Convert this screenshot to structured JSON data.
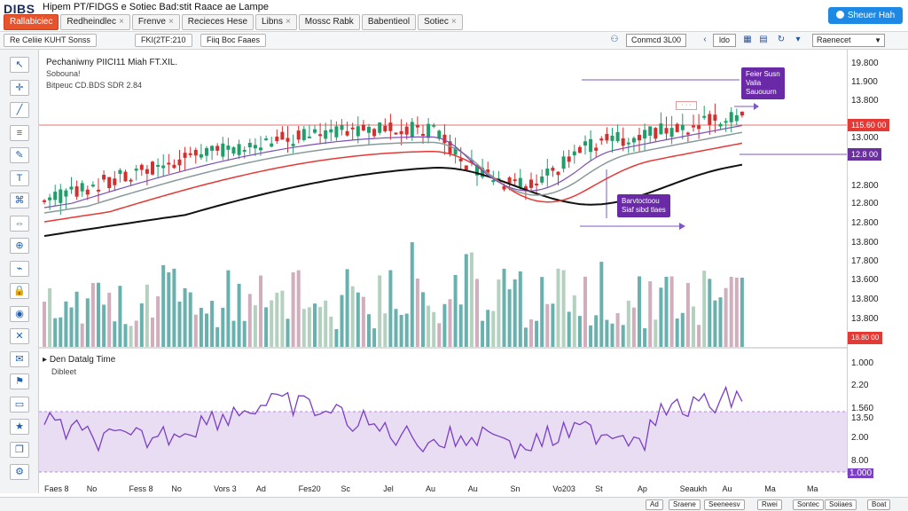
{
  "app": {
    "logo": "DIBS",
    "title": "Hipem PT/FIDGS e Sotiec Bad:stit Raace ae Lampe",
    "share_label": "Sheuer Hah"
  },
  "menu_tabs": [
    {
      "label": "Rallabiciec",
      "active": true
    },
    {
      "label": "Redheindlec",
      "active": false
    },
    {
      "label": "Frenve",
      "active": false
    },
    {
      "label": "Recieces Hese",
      "active": false
    },
    {
      "label": "Libns",
      "active": false
    },
    {
      "label": "Mossc Rabk",
      "active": false
    },
    {
      "label": "Babentieol",
      "active": false
    },
    {
      "label": "Sotiec",
      "active": false
    }
  ],
  "toolbar": {
    "tabs": [
      "Re Celiie KUHT Sonss",
      "FKI(2TF:210",
      "Fiiq Boc Faaes"
    ],
    "search_value": "Conmcd 3L00",
    "range_label": "ldo",
    "select_value": "Raenecet"
  },
  "legend": {
    "title": "Pechaniwny PIICI11 Miah FT.XIL.",
    "line1": "Sobouna!",
    "line2": "Bitpeuc CD.BDS SDR 2.84"
  },
  "oscillator": {
    "title": "Den Datalg Time",
    "subtitle": "Dibleet"
  },
  "price_ticks": [
    "19.800",
    "11.900",
    "13.800",
    "13.000",
    "12.800",
    "12.800",
    "12.800",
    "13.800",
    "17.800",
    "13.600",
    "13.800",
    "13.800"
  ],
  "price_tags": [
    {
      "label": "115.60 00",
      "color": "#e53935"
    },
    {
      "label": "12.8 00",
      "color": "#6b2fa0"
    },
    {
      "label": "18.80 00",
      "color": "#e53935"
    }
  ],
  "osc_ticks": [
    "1.000",
    "2.20",
    "1.560",
    "13.50",
    "2.00",
    "8.00",
    "1.000"
  ],
  "time_ticks": [
    "Faes 8",
    "No",
    "Fess 8",
    "No",
    "Vors 3",
    "Ad",
    "Fes20",
    "Sc",
    "Jel",
    "Au",
    "Au",
    "Sn",
    "Vo203",
    "St",
    "Ap",
    "Seaukh",
    "Au",
    "Ma",
    "Ma"
  ],
  "callouts": [
    {
      "text": "Feier Susn\nValia\nSauouurn",
      "color": "#6a2aa8"
    },
    {
      "text": "Barvtoctoou\nSiaf sibd tlaes",
      "color": "#6a2aa8"
    }
  ],
  "status_buttons": [
    "Ad",
    "Sraene",
    "Seeneesv",
    "Rwei",
    "Sontec",
    "Soiiaes",
    "Boat"
  ],
  "colors": {
    "up": "#1f9e6a",
    "down": "#d32f2f",
    "ma_slow": "#111111",
    "ma_red": "#e53935",
    "ma_gray": "#8a9a9a",
    "ma_purple": "#7b4fb5",
    "osc_line": "#7b3fc4",
    "osc_band": "#e7d9f3",
    "accent": "#1e88e5"
  },
  "tools": [
    "cursor-icon",
    "crosshair-icon",
    "trend-line-icon",
    "fib-icon",
    "brush-icon",
    "text-icon",
    "pattern-icon",
    "measure-icon",
    "zoom-icon",
    "magnet-icon",
    "lock-icon",
    "eye-icon",
    "trash-icon",
    "note-icon",
    "alert-icon",
    "ruler-icon",
    "star-icon",
    "layers-icon",
    "settings-icon"
  ]
}
